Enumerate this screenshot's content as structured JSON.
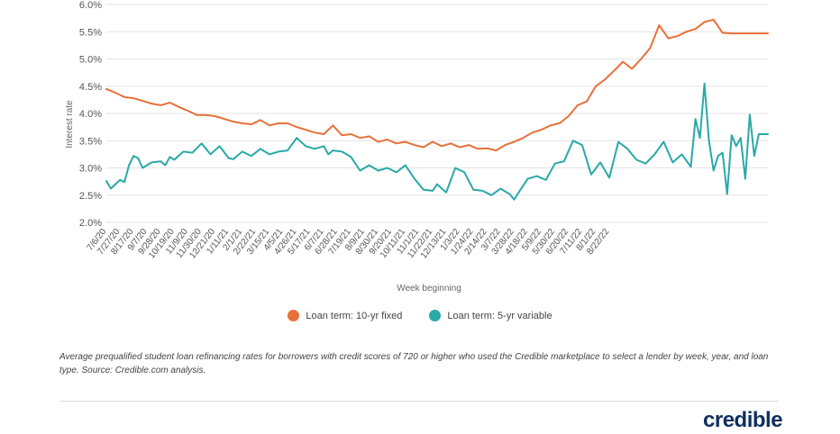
{
  "chart_data": {
    "type": "line",
    "xlabel": "Week beginning",
    "ylabel": "Interest rate",
    "ylim": [
      2.0,
      6.0
    ],
    "yticks": [
      "2.0%",
      "2.5%",
      "3.0%",
      "3.5%",
      "4.0%",
      "4.5%",
      "5.0%",
      "5.5%",
      "6.0%"
    ],
    "x_tick_labels": [
      "7/6/20",
      "7/27/20",
      "8/17/20",
      "9/7/20",
      "9/28/20",
      "10/19/20",
      "11/9/20",
      "11/30/20",
      "12/21/20",
      "1/11/21",
      "2/1/21",
      "2/22/21",
      "3/15/21",
      "4/5/21",
      "4/26/21",
      "5/17/21",
      "6/7/21",
      "6/28/21",
      "7/19/21",
      "8/9/21",
      "8/30/21",
      "9/20/21",
      "10/11/21",
      "11/1/21",
      "11/22/21",
      "12/13/21",
      "1/3/22",
      "1/24/22",
      "2/14/22",
      "3/7/22",
      "3/28/22",
      "4/18/22",
      "5/9/22",
      "5/30/22",
      "6/20/22",
      "7/11/22",
      "8/1/22",
      "8/22/22"
    ],
    "grid": true,
    "legend_position": "bottom",
    "series": [
      {
        "name": "Loan term: 10-yr fixed",
        "color": "#e8703a",
        "anchors": [
          [
            0,
            4.45
          ],
          [
            2,
            4.38
          ],
          [
            4,
            4.3
          ],
          [
            6,
            4.28
          ],
          [
            8,
            4.23
          ],
          [
            10,
            4.18
          ],
          [
            12,
            4.15
          ],
          [
            14,
            4.2
          ],
          [
            16,
            4.12
          ],
          [
            18,
            4.05
          ],
          [
            20,
            3.97
          ],
          [
            22,
            3.97
          ],
          [
            24,
            3.95
          ],
          [
            26,
            3.9
          ],
          [
            28,
            3.85
          ],
          [
            30,
            3.82
          ],
          [
            32,
            3.8
          ],
          [
            34,
            3.88
          ],
          [
            36,
            3.78
          ],
          [
            38,
            3.82
          ],
          [
            40,
            3.82
          ],
          [
            42,
            3.75
          ],
          [
            44,
            3.7
          ],
          [
            46,
            3.65
          ],
          [
            48,
            3.62
          ],
          [
            50,
            3.78
          ],
          [
            52,
            3.6
          ],
          [
            54,
            3.62
          ],
          [
            56,
            3.55
          ],
          [
            58,
            3.58
          ],
          [
            60,
            3.48
          ],
          [
            62,
            3.52
          ],
          [
            64,
            3.45
          ],
          [
            66,
            3.48
          ],
          [
            68,
            3.42
          ],
          [
            70,
            3.38
          ],
          [
            72,
            3.48
          ],
          [
            74,
            3.4
          ],
          [
            76,
            3.45
          ],
          [
            78,
            3.38
          ],
          [
            80,
            3.42
          ],
          [
            82,
            3.35
          ],
          [
            84,
            3.36
          ],
          [
            86,
            3.32
          ],
          [
            88,
            3.42
          ],
          [
            90,
            3.48
          ],
          [
            92,
            3.55
          ],
          [
            94,
            3.65
          ],
          [
            96,
            3.7
          ],
          [
            98,
            3.78
          ],
          [
            100,
            3.82
          ],
          [
            102,
            3.95
          ],
          [
            104,
            4.15
          ],
          [
            106,
            4.22
          ],
          [
            108,
            4.5
          ],
          [
            110,
            4.62
          ],
          [
            112,
            4.78
          ],
          [
            114,
            4.95
          ],
          [
            116,
            4.82
          ],
          [
            118,
            5.0
          ],
          [
            120,
            5.2
          ],
          [
            122,
            5.62
          ],
          [
            124,
            5.38
          ],
          [
            126,
            5.42
          ],
          [
            128,
            5.5
          ],
          [
            130,
            5.55
          ],
          [
            132,
            5.68
          ],
          [
            134,
            5.72
          ],
          [
            136,
            5.48
          ],
          [
            138,
            5.47
          ]
        ]
      },
      {
        "name": "Loan term: 5-yr variable",
        "color": "#2ba8a8",
        "anchors": [
          [
            0,
            2.76
          ],
          [
            1,
            2.62
          ],
          [
            2,
            2.7
          ],
          [
            3,
            2.78
          ],
          [
            4,
            2.74
          ],
          [
            5,
            3.05
          ],
          [
            6,
            3.22
          ],
          [
            7,
            3.18
          ],
          [
            8,
            3.0
          ],
          [
            10,
            3.1
          ],
          [
            12,
            3.12
          ],
          [
            13,
            3.05
          ],
          [
            14,
            3.2
          ],
          [
            15,
            3.15
          ],
          [
            17,
            3.3
          ],
          [
            19,
            3.28
          ],
          [
            21,
            3.45
          ],
          [
            23,
            3.25
          ],
          [
            25,
            3.4
          ],
          [
            27,
            3.18
          ],
          [
            28,
            3.16
          ],
          [
            30,
            3.3
          ],
          [
            32,
            3.22
          ],
          [
            34,
            3.35
          ],
          [
            36,
            3.25
          ],
          [
            38,
            3.3
          ],
          [
            40,
            3.32
          ],
          [
            42,
            3.55
          ],
          [
            44,
            3.4
          ],
          [
            46,
            3.35
          ],
          [
            48,
            3.4
          ],
          [
            49,
            3.25
          ],
          [
            50,
            3.32
          ],
          [
            52,
            3.3
          ],
          [
            54,
            3.2
          ],
          [
            56,
            2.95
          ],
          [
            58,
            3.05
          ],
          [
            60,
            2.95
          ],
          [
            62,
            3.0
          ],
          [
            64,
            2.92
          ],
          [
            66,
            3.05
          ],
          [
            68,
            2.8
          ],
          [
            70,
            2.6
          ],
          [
            72,
            2.58
          ],
          [
            73,
            2.7
          ],
          [
            75,
            2.55
          ],
          [
            77,
            3.0
          ],
          [
            79,
            2.92
          ],
          [
            81,
            2.6
          ],
          [
            83,
            2.58
          ],
          [
            85,
            2.5
          ],
          [
            87,
            2.62
          ],
          [
            89,
            2.52
          ],
          [
            90,
            2.42
          ],
          [
            91,
            2.55
          ],
          [
            93,
            2.8
          ],
          [
            95,
            2.85
          ],
          [
            97,
            2.78
          ],
          [
            99,
            3.08
          ],
          [
            101,
            3.12
          ],
          [
            103,
            3.5
          ],
          [
            105,
            3.42
          ],
          [
            107,
            2.88
          ],
          [
            109,
            3.1
          ],
          [
            111,
            2.82
          ],
          [
            113,
            3.48
          ],
          [
            115,
            3.35
          ],
          [
            117,
            3.15
          ],
          [
            119,
            3.08
          ],
          [
            121,
            3.25
          ],
          [
            123,
            3.48
          ],
          [
            125,
            3.1
          ],
          [
            127,
            3.25
          ],
          [
            129,
            3.02
          ],
          [
            130,
            3.9
          ],
          [
            131,
            3.55
          ],
          [
            132,
            4.55
          ],
          [
            133,
            3.5
          ],
          [
            134,
            2.95
          ],
          [
            135,
            3.22
          ],
          [
            136,
            3.28
          ],
          [
            137,
            2.52
          ],
          [
            138,
            3.6
          ],
          [
            139,
            3.4
          ],
          [
            140,
            3.55
          ],
          [
            141,
            2.8
          ],
          [
            142,
            3.98
          ],
          [
            143,
            3.22
          ],
          [
            144,
            3.62
          ]
        ]
      }
    ],
    "source_note": "Average prequalified student loan refinancing rates for borrowers with credit scores of 720 or higher who used the Credible marketplace to select a lender by week, year, and loan type. Source: Credible.com analysis."
  },
  "legend": {
    "fixed_label": "Loan term: 10-yr fixed",
    "variable_label": "Loan term: 5-yr variable",
    "fixed_color": "#e8703a",
    "variable_color": "#2ba8a8"
  },
  "brand": {
    "name": "credible"
  }
}
